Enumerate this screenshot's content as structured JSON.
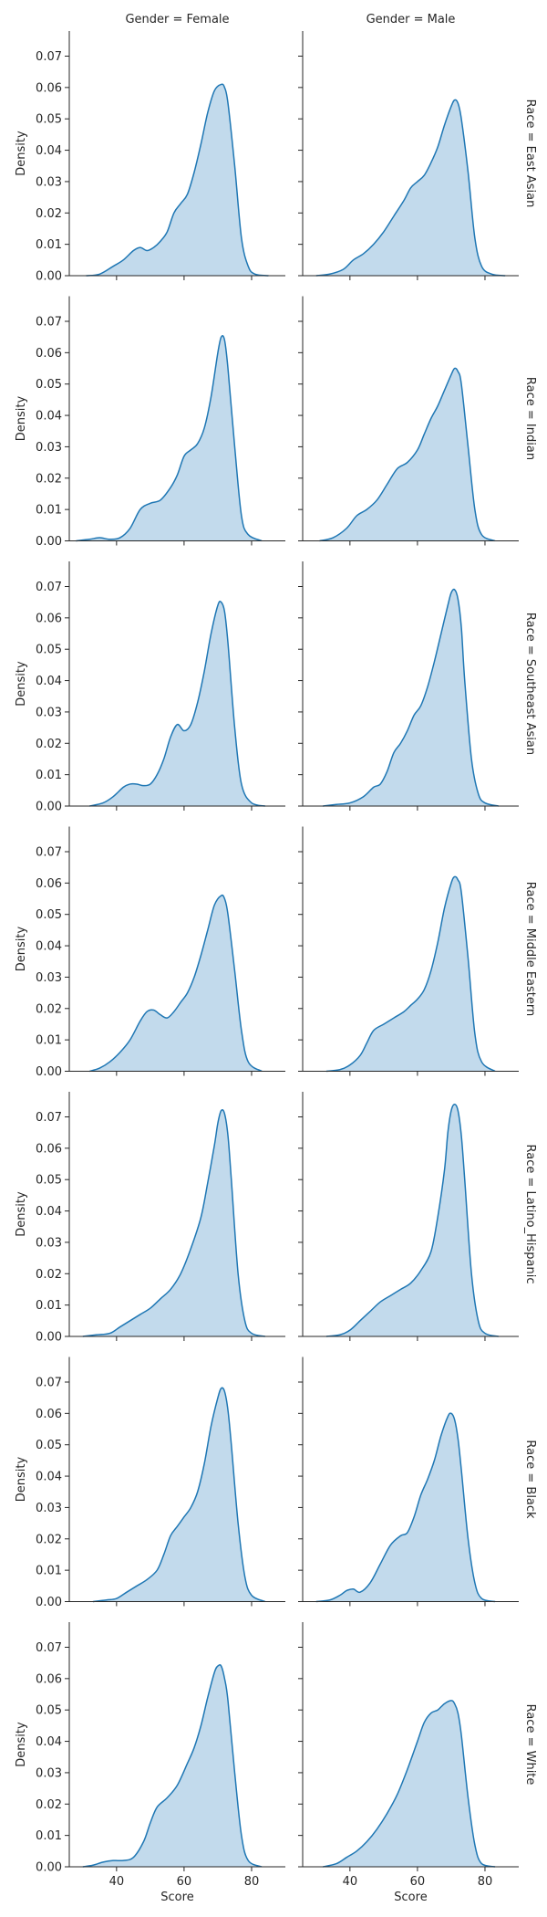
{
  "chart_data": {
    "type": "area",
    "kind": "kde-facet-grid",
    "col_var": "Gender",
    "row_var": "Race",
    "columns": [
      "Gender = Female",
      "Gender = Male"
    ],
    "rows": [
      "Race = East Asian",
      "Race = Indian",
      "Race = Southeast Asian",
      "Race = Middle Eastern",
      "Race = Latino_Hispanic",
      "Race = Black",
      "Race = White"
    ],
    "xlabel": "Score",
    "ylabel": "Density",
    "xlim": [
      26,
      90
    ],
    "ylim": [
      0,
      0.078
    ],
    "xticks": [
      40,
      60,
      80
    ],
    "yticks": [
      0.0,
      0.01,
      0.02,
      0.03,
      0.04,
      0.05,
      0.06,
      0.07
    ],
    "ytick_labels": [
      "0.00",
      "0.01",
      "0.02",
      "0.03",
      "0.04",
      "0.05",
      "0.06",
      "0.07"
    ],
    "grid": false,
    "legend": "none",
    "colors": {
      "line": "#1f77b4",
      "fill": "#aecde6"
    },
    "panels": [
      {
        "row": "Race = East Asian",
        "col": "Gender = Female",
        "x": [
          31,
          35,
          39,
          42,
          45,
          47,
          49,
          51,
          53,
          55,
          57,
          59,
          61,
          63,
          65,
          67,
          69,
          71,
          72,
          73,
          75,
          77,
          79,
          81,
          85
        ],
        "y": [
          0,
          0.0005,
          0.003,
          0.005,
          0.008,
          0.009,
          0.008,
          0.009,
          0.011,
          0.014,
          0.02,
          0.023,
          0.026,
          0.033,
          0.042,
          0.052,
          0.059,
          0.061,
          0.06,
          0.055,
          0.035,
          0.012,
          0.003,
          0.0005,
          0
        ]
      },
      {
        "row": "Race = East Asian",
        "col": "Gender = Male",
        "x": [
          30,
          34,
          38,
          41,
          44,
          47,
          50,
          53,
          56,
          58,
          60,
          62,
          64,
          66,
          68,
          70,
          71,
          72,
          73,
          75,
          77,
          79,
          82,
          86
        ],
        "y": [
          0,
          0.0005,
          0.002,
          0.005,
          0.007,
          0.01,
          0.014,
          0.019,
          0.024,
          0.028,
          0.03,
          0.032,
          0.036,
          0.041,
          0.048,
          0.054,
          0.056,
          0.055,
          0.05,
          0.033,
          0.012,
          0.003,
          0.0005,
          0
        ]
      },
      {
        "row": "Race = Indian",
        "col": "Gender = Female",
        "x": [
          28,
          32,
          35,
          38,
          41,
          44,
          47,
          50,
          53,
          56,
          58,
          60,
          62,
          64,
          66,
          68,
          70,
          71,
          72,
          73,
          75,
          77,
          79,
          83
        ],
        "y": [
          0,
          0.0005,
          0.001,
          0.0005,
          0.001,
          0.004,
          0.01,
          0.012,
          0.013,
          0.017,
          0.021,
          0.027,
          0.029,
          0.031,
          0.036,
          0.046,
          0.06,
          0.065,
          0.064,
          0.055,
          0.03,
          0.008,
          0.002,
          0
        ]
      },
      {
        "row": "Race = Indian",
        "col": "Gender = Male",
        "x": [
          31,
          35,
          39,
          42,
          45,
          48,
          51,
          54,
          57,
          60,
          62,
          64,
          66,
          68,
          70,
          71,
          72,
          73,
          75,
          77,
          79,
          83
        ],
        "y": [
          0,
          0.001,
          0.004,
          0.008,
          0.01,
          0.013,
          0.018,
          0.023,
          0.025,
          0.029,
          0.034,
          0.039,
          0.043,
          0.048,
          0.053,
          0.055,
          0.054,
          0.05,
          0.03,
          0.01,
          0.002,
          0
        ]
      },
      {
        "row": "Race = Southeast Asian",
        "col": "Gender = Female",
        "x": [
          32,
          36,
          39,
          42,
          44,
          46,
          48,
          50,
          52,
          54,
          56,
          58,
          60,
          62,
          64,
          66,
          68,
          70,
          71,
          72,
          73,
          75,
          77,
          80,
          84
        ],
        "y": [
          0,
          0.001,
          0.003,
          0.006,
          0.007,
          0.007,
          0.0065,
          0.007,
          0.01,
          0.015,
          0.022,
          0.026,
          0.024,
          0.026,
          0.033,
          0.043,
          0.055,
          0.064,
          0.065,
          0.062,
          0.052,
          0.025,
          0.007,
          0.001,
          0
        ]
      },
      {
        "row": "Race = Southeast Asian",
        "col": "Gender = Male",
        "x": [
          32,
          36,
          40,
          44,
          47,
          49,
          51,
          53,
          55,
          57,
          59,
          61,
          63,
          65,
          67,
          69,
          70,
          71,
          72,
          73,
          74,
          76,
          78,
          80,
          84
        ],
        "y": [
          0,
          0.0005,
          0.001,
          0.003,
          0.006,
          0.007,
          0.011,
          0.017,
          0.02,
          0.024,
          0.029,
          0.032,
          0.038,
          0.046,
          0.055,
          0.064,
          0.068,
          0.069,
          0.066,
          0.057,
          0.04,
          0.015,
          0.004,
          0.001,
          0
        ]
      },
      {
        "row": "Race = Middle Eastern",
        "col": "Gender = Female",
        "x": [
          32,
          35,
          38,
          41,
          44,
          47,
          49,
          51,
          53,
          55,
          57,
          59,
          61,
          63,
          65,
          67,
          69,
          71,
          72,
          73,
          75,
          77,
          79,
          83
        ],
        "y": [
          0,
          0.001,
          0.003,
          0.006,
          0.01,
          0.016,
          0.019,
          0.0195,
          0.018,
          0.017,
          0.019,
          0.022,
          0.025,
          0.03,
          0.037,
          0.045,
          0.053,
          0.056,
          0.055,
          0.05,
          0.032,
          0.013,
          0.003,
          0
        ]
      },
      {
        "row": "Race = Middle Eastern",
        "col": "Gender = Male",
        "x": [
          33,
          37,
          40,
          43,
          45,
          47,
          50,
          53,
          56,
          58,
          60,
          62,
          64,
          66,
          68,
          70,
          71,
          72,
          73,
          75,
          77,
          79,
          83
        ],
        "y": [
          0,
          0.0005,
          0.002,
          0.005,
          0.009,
          0.013,
          0.015,
          0.017,
          0.019,
          0.021,
          0.023,
          0.026,
          0.032,
          0.041,
          0.052,
          0.06,
          0.062,
          0.061,
          0.057,
          0.036,
          0.012,
          0.003,
          0
        ]
      },
      {
        "row": "Race = Latino_Hispanic",
        "col": "Gender = Female",
        "x": [
          30,
          34,
          38,
          41,
          44,
          47,
          50,
          53,
          56,
          59,
          62,
          65,
          67,
          69,
          70,
          71,
          72,
          73,
          74,
          76,
          78,
          80,
          84
        ],
        "y": [
          0,
          0.0005,
          0.001,
          0.003,
          0.005,
          0.007,
          0.009,
          0.012,
          0.015,
          0.02,
          0.028,
          0.038,
          0.049,
          0.061,
          0.068,
          0.072,
          0.071,
          0.064,
          0.05,
          0.02,
          0.005,
          0.001,
          0
        ]
      },
      {
        "row": "Race = Latino_Hispanic",
        "col": "Gender = Male",
        "x": [
          33,
          37,
          40,
          43,
          46,
          49,
          52,
          55,
          58,
          61,
          64,
          66,
          68,
          69,
          70,
          71,
          72,
          73,
          74,
          76,
          78,
          80,
          84
        ],
        "y": [
          0,
          0.0005,
          0.002,
          0.005,
          0.008,
          0.011,
          0.013,
          0.015,
          0.017,
          0.021,
          0.027,
          0.038,
          0.053,
          0.065,
          0.072,
          0.074,
          0.072,
          0.064,
          0.05,
          0.02,
          0.005,
          0.001,
          0
        ]
      },
      {
        "row": "Race = Black",
        "col": "Gender = Female",
        "x": [
          33,
          37,
          40,
          43,
          46,
          49,
          52,
          54,
          56,
          58,
          60,
          62,
          64,
          66,
          68,
          70,
          71,
          72,
          73,
          74,
          76,
          78,
          80,
          84
        ],
        "y": [
          0,
          0.0005,
          0.001,
          0.003,
          0.005,
          0.007,
          0.01,
          0.015,
          0.021,
          0.024,
          0.027,
          0.03,
          0.035,
          0.044,
          0.056,
          0.065,
          0.068,
          0.067,
          0.061,
          0.05,
          0.025,
          0.008,
          0.002,
          0
        ]
      },
      {
        "row": "Race = Black",
        "col": "Gender = Male",
        "x": [
          30,
          34,
          37,
          39,
          41,
          43,
          46,
          49,
          52,
          55,
          57,
          59,
          61,
          63,
          65,
          67,
          69,
          70,
          71,
          72,
          73,
          75,
          77,
          79,
          83
        ],
        "y": [
          0,
          0.0005,
          0.002,
          0.0035,
          0.004,
          0.003,
          0.006,
          0.012,
          0.018,
          0.021,
          0.022,
          0.027,
          0.034,
          0.039,
          0.045,
          0.053,
          0.059,
          0.06,
          0.058,
          0.052,
          0.042,
          0.02,
          0.006,
          0.001,
          0
        ]
      },
      {
        "row": "Race = White",
        "col": "Gender = Female",
        "x": [
          30,
          33,
          36,
          39,
          42,
          45,
          48,
          50,
          52,
          55,
          58,
          61,
          63,
          65,
          67,
          69,
          70,
          71,
          72,
          73,
          75,
          77,
          79,
          83
        ],
        "y": [
          0,
          0.0005,
          0.0015,
          0.002,
          0.002,
          0.003,
          0.008,
          0.014,
          0.019,
          0.022,
          0.026,
          0.033,
          0.038,
          0.045,
          0.054,
          0.062,
          0.064,
          0.064,
          0.06,
          0.053,
          0.03,
          0.01,
          0.002,
          0
        ]
      },
      {
        "row": "Race = White",
        "col": "Gender = Male",
        "x": [
          32,
          36,
          39,
          42,
          45,
          48,
          51,
          54,
          57,
          60,
          62,
          64,
          66,
          68,
          70,
          71,
          72,
          73,
          75,
          77,
          79,
          83
        ],
        "y": [
          0,
          0.001,
          0.003,
          0.005,
          0.008,
          0.012,
          0.017,
          0.023,
          0.031,
          0.04,
          0.046,
          0.049,
          0.05,
          0.052,
          0.053,
          0.052,
          0.049,
          0.042,
          0.022,
          0.007,
          0.001,
          0
        ]
      }
    ]
  }
}
